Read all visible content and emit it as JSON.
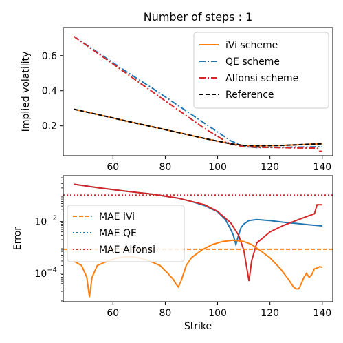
{
  "chart_data": [
    {
      "type": "line",
      "title": "Number of steps : 1",
      "xlabel": "",
      "ylabel": "Implied volatility",
      "xlim": [
        41,
        144
      ],
      "ylim": [
        0.03,
        0.76
      ],
      "xticks": [
        60,
        80,
        100,
        120,
        140
      ],
      "yticks": [
        0.2,
        0.4,
        0.6
      ],
      "xtick_labels": [
        "60",
        "80",
        "100",
        "120",
        "140"
      ],
      "ytick_labels": [
        "0.2",
        "0.4",
        "0.6"
      ],
      "legend_position": "top-right",
      "series": [
        {
          "name": "iVi scheme",
          "color": "#ff7f0e",
          "style": "solid",
          "x": [
            45,
            55,
            65,
            75,
            85,
            95,
            105,
            110,
            115,
            120,
            125,
            130,
            135,
            140
          ],
          "y": [
            0.295,
            0.262,
            0.228,
            0.195,
            0.162,
            0.128,
            0.098,
            0.089,
            0.086,
            0.087,
            0.089,
            0.092,
            0.095,
            0.098
          ]
        },
        {
          "name": "QE scheme",
          "color": "#1f77b4",
          "style": "dashdot",
          "x": [
            45,
            55,
            65,
            75,
            85,
            95,
            105,
            110,
            115,
            120,
            125,
            130,
            135,
            140
          ],
          "y": [
            0.71,
            0.61,
            0.51,
            0.415,
            0.315,
            0.215,
            0.115,
            0.082,
            0.076,
            0.077,
            0.078,
            0.079,
            0.08,
            0.081
          ]
        },
        {
          "name": "Alfonsi scheme",
          "color": "#d62728",
          "style": "dashdot",
          "x": [
            45,
            55,
            65,
            75,
            85,
            95,
            105,
            110,
            115,
            120,
            125,
            130,
            135,
            138,
            139,
            140
          ],
          "y": [
            0.71,
            0.605,
            0.5,
            0.395,
            0.29,
            0.185,
            0.095,
            0.082,
            0.078,
            0.077,
            0.075,
            0.074,
            0.073,
            0.073,
            0.055,
            0.055
          ]
        },
        {
          "name": "Reference",
          "color": "#000000",
          "style": "dashed",
          "x": [
            45,
            55,
            65,
            75,
            85,
            95,
            105,
            110,
            115,
            120,
            125,
            130,
            135,
            140
          ],
          "y": [
            0.295,
            0.262,
            0.228,
            0.195,
            0.162,
            0.128,
            0.098,
            0.089,
            0.086,
            0.087,
            0.089,
            0.092,
            0.095,
            0.098
          ]
        }
      ]
    },
    {
      "type": "line",
      "title": "",
      "xlabel": "Strike",
      "ylabel": "Error",
      "yscale": "log",
      "xlim": [
        41,
        144
      ],
      "ylim": [
        8e-06,
        0.6
      ],
      "xticks": [
        60,
        80,
        100,
        120,
        140
      ],
      "xtick_labels": [
        "60",
        "80",
        "100",
        "120",
        "140"
      ],
      "yticks": [
        0.0001,
        0.01
      ],
      "ytick_base": "10",
      "ytick_exponents": [
        "−4",
        "−2"
      ],
      "legend_position": "center-left",
      "series": [
        {
          "name": "",
          "color": "#1f77b4",
          "style": "solid",
          "x": [
            45,
            55,
            65,
            75,
            85,
            90,
            95,
            100,
            103,
            105,
            106,
            107,
            108,
            109,
            110,
            112,
            115,
            120,
            125,
            130,
            135,
            140
          ],
          "y": [
            0.28,
            0.2,
            0.15,
            0.115,
            0.08,
            0.06,
            0.042,
            0.024,
            0.012,
            0.005,
            0.003,
            0.0013,
            0.003,
            0.006,
            0.008,
            0.011,
            0.012,
            0.011,
            0.0095,
            0.0085,
            0.0075,
            0.0068
          ]
        },
        {
          "name": "",
          "color": "#d62728",
          "style": "solid",
          "x": [
            45,
            55,
            65,
            75,
            85,
            95,
            100,
            105,
            108,
            110,
            111,
            112,
            113,
            115,
            120,
            125,
            130,
            135,
            137,
            138,
            139,
            140
          ],
          "y": [
            0.28,
            0.2,
            0.15,
            0.115,
            0.08,
            0.045,
            0.025,
            0.009,
            0.003,
            0.0008,
            0.0002,
            5e-05,
            0.0003,
            0.0015,
            0.004,
            0.007,
            0.011,
            0.017,
            0.02,
            0.045,
            0.045,
            0.045
          ]
        },
        {
          "name": "",
          "color": "#ff7f0e",
          "style": "solid",
          "x": [
            45,
            48,
            50,
            51,
            52,
            54,
            58,
            62,
            66,
            70,
            74,
            78,
            81,
            83,
            84,
            85,
            86,
            87,
            88,
            90,
            94,
            98,
            102,
            106,
            110,
            113,
            116,
            120,
            124,
            127,
            129,
            130,
            131,
            132,
            133,
            134,
            135,
            136,
            137,
            138,
            139,
            140
          ],
          "y": [
            0.0003,
            0.0002,
            7e-05,
            1.2e-05,
            7e-05,
            0.0002,
            0.0003,
            0.0004,
            0.00045,
            0.0004,
            0.0003,
            0.0002,
            0.0001,
            6e-05,
            4e-05,
            3e-05,
            5e-05,
            0.0001,
            0.0002,
            0.0004,
            0.0008,
            0.0013,
            0.0017,
            0.0019,
            0.0017,
            0.0013,
            0.0008,
            0.0004,
            0.00015,
            6e-05,
            3e-05,
            2.5e-05,
            2.5e-05,
            4e-05,
            7e-05,
            0.0001,
            7e-05,
            9e-05,
            0.00015,
            0.00016,
            0.00018,
            0.00017
          ]
        },
        {
          "name": "MAE iVi",
          "color": "#ff7f0e",
          "style": "dashed",
          "hline": 0.00085
        },
        {
          "name": "MAE QE",
          "color": "#1f77b4",
          "style": "dotted",
          "hline": 0.105
        },
        {
          "name": "MAE Alfonsi",
          "color": "#d62728",
          "style": "dotted",
          "hline": 0.105
        }
      ]
    }
  ]
}
